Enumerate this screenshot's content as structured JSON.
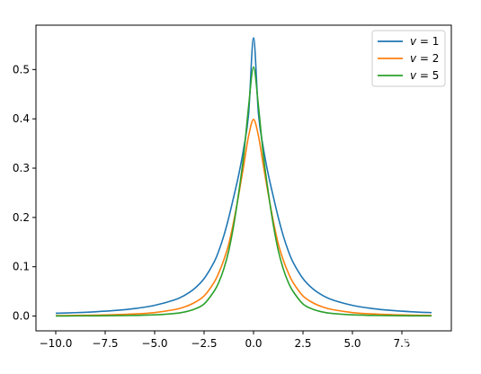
{
  "chart_data": {
    "type": "line",
    "title": "",
    "xlabel": "",
    "ylabel": "",
    "xlim": [
      -11.0,
      10.0
    ],
    "ylim": [
      -0.03,
      0.59
    ],
    "grid": false,
    "legend_position": "top-right",
    "x_ticks": [
      -10.0,
      -7.5,
      -5.0,
      -2.5,
      0.0,
      2.5,
      5.0,
      7.5
    ],
    "x_tick_labels": [
      "−10.0",
      "−7.5",
      "−5.0",
      "−2.5",
      "0.0",
      "2.5",
      "5.0",
      "7.5"
    ],
    "y_ticks": [
      0.0,
      0.1,
      0.2,
      0.3,
      0.4,
      0.5
    ],
    "y_tick_labels": [
      "0.0",
      "0.1",
      "0.2",
      "0.3",
      "0.4",
      "0.5"
    ],
    "x": [
      -10,
      -9,
      -8,
      -7,
      -6,
      -5,
      -4,
      -3.5,
      -3,
      -2.5,
      -2,
      -1.75,
      -1.5,
      -1.25,
      -1,
      -0.75,
      -0.5,
      -0.25,
      0,
      0.25,
      0.5,
      0.75,
      1,
      1.25,
      1.5,
      1.75,
      2,
      2.5,
      3,
      3.5,
      4,
      5,
      6,
      7,
      8,
      9,
      9.0
    ],
    "series": [
      {
        "name": "v = 1",
        "color": "#1f77b4",
        "values": [
          0.0056,
          0.0069,
          0.0087,
          0.0113,
          0.0153,
          0.0217,
          0.0327,
          0.0417,
          0.0552,
          0.076,
          0.1091,
          0.133,
          0.1632,
          0.2001,
          0.2422,
          0.2865,
          0.3398,
          0.4093,
          0.5642,
          0.4093,
          0.3398,
          0.2865,
          0.2422,
          0.2001,
          0.1632,
          0.133,
          0.1091,
          0.076,
          0.0552,
          0.0417,
          0.0327,
          0.0217,
          0.0153,
          0.0113,
          0.0087,
          0.0069,
          0.0069
        ]
      },
      {
        "name": "v = 2",
        "color": "#ff7f0e",
        "values": [
          0.001,
          0.0013,
          0.0019,
          0.0028,
          0.0043,
          0.0071,
          0.0131,
          0.0184,
          0.027,
          0.0408,
          0.068,
          0.0883,
          0.1141,
          0.1465,
          0.1925,
          0.246,
          0.3045,
          0.365,
          0.3989,
          0.365,
          0.3045,
          0.246,
          0.1925,
          0.1465,
          0.1141,
          0.0883,
          0.068,
          0.0408,
          0.027,
          0.0184,
          0.0131,
          0.0071,
          0.0043,
          0.0028,
          0.0019,
          0.0013,
          0.0013
        ]
      },
      {
        "name": "v = 5",
        "color": "#2ca02c",
        "values": [
          0.0002,
          0.0003,
          0.0005,
          0.0008,
          0.0013,
          0.0024,
          0.0052,
          0.0082,
          0.0138,
          0.0245,
          0.05,
          0.069,
          0.096,
          0.133,
          0.185,
          0.25,
          0.325,
          0.425,
          0.5052,
          0.425,
          0.325,
          0.25,
          0.185,
          0.133,
          0.096,
          0.069,
          0.05,
          0.0245,
          0.0138,
          0.0082,
          0.0052,
          0.0024,
          0.0013,
          0.0008,
          0.0005,
          0.0003,
          0.0003
        ]
      }
    ]
  },
  "legend": {
    "items": [
      {
        "label": "v = 1",
        "color": "#1f77b4"
      },
      {
        "label": "v = 2",
        "color": "#ff7f0e"
      },
      {
        "label": "v = 5",
        "color": "#2ca02c"
      }
    ]
  },
  "watermark": {
    "text": "知乎 @Sophia"
  }
}
